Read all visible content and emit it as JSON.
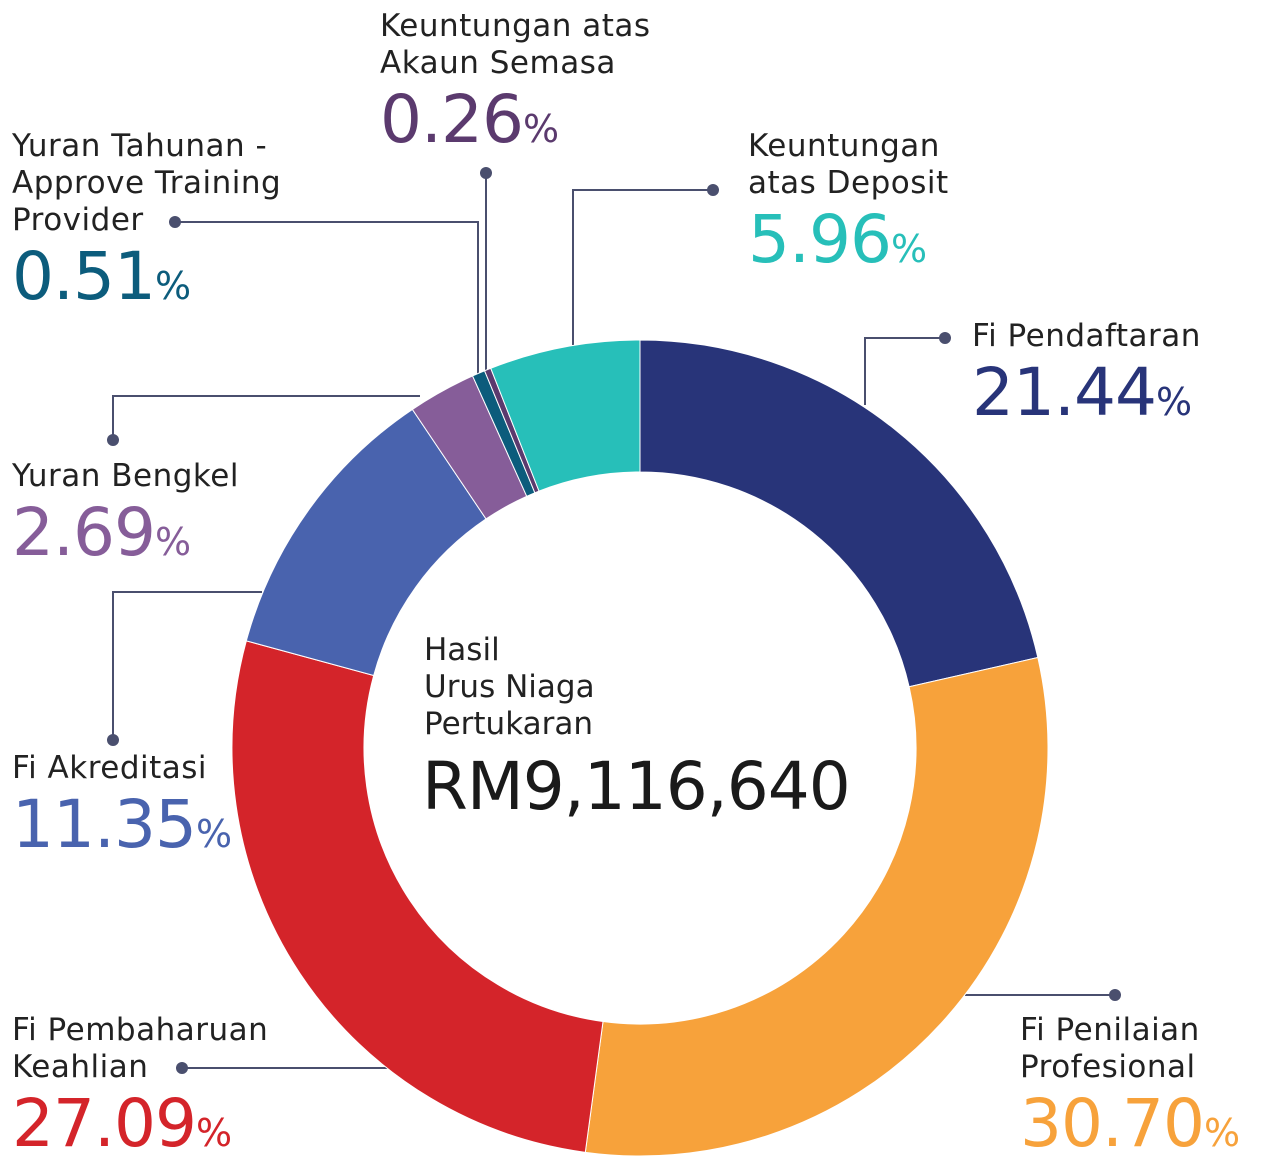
{
  "chart_data": {
    "type": "donut",
    "center_title": "Hasil\nUrus Niaga\nPertukaran",
    "center_value": "RM9,116,640",
    "unit": "%",
    "categories": [
      "Fi Pendaftaran",
      "Fi Penilaian\nProfesional",
      "Fi Pembaharuan\nKeahlian",
      "Fi Akreditasi",
      "Yuran Bengkel",
      "Yuran Tahunan -\nApprove Training\nProvider",
      "Keuntungan atas\nAkaun Semasa",
      "Keuntungan\natas Deposit"
    ],
    "values": [
      21.44,
      30.7,
      27.09,
      11.35,
      2.69,
      0.51,
      0.26,
      5.96
    ],
    "value_labels": [
      "21.44",
      "30.70",
      "27.09",
      "11.35",
      "2.69",
      "0.51",
      "0.26",
      "5.96"
    ],
    "colors": [
      "#283479",
      "#f7a23b",
      "#d4242a",
      "#4963ae",
      "#865d99",
      "#0c5c7c",
      "#5b3a6e",
      "#27bfb9"
    ]
  }
}
